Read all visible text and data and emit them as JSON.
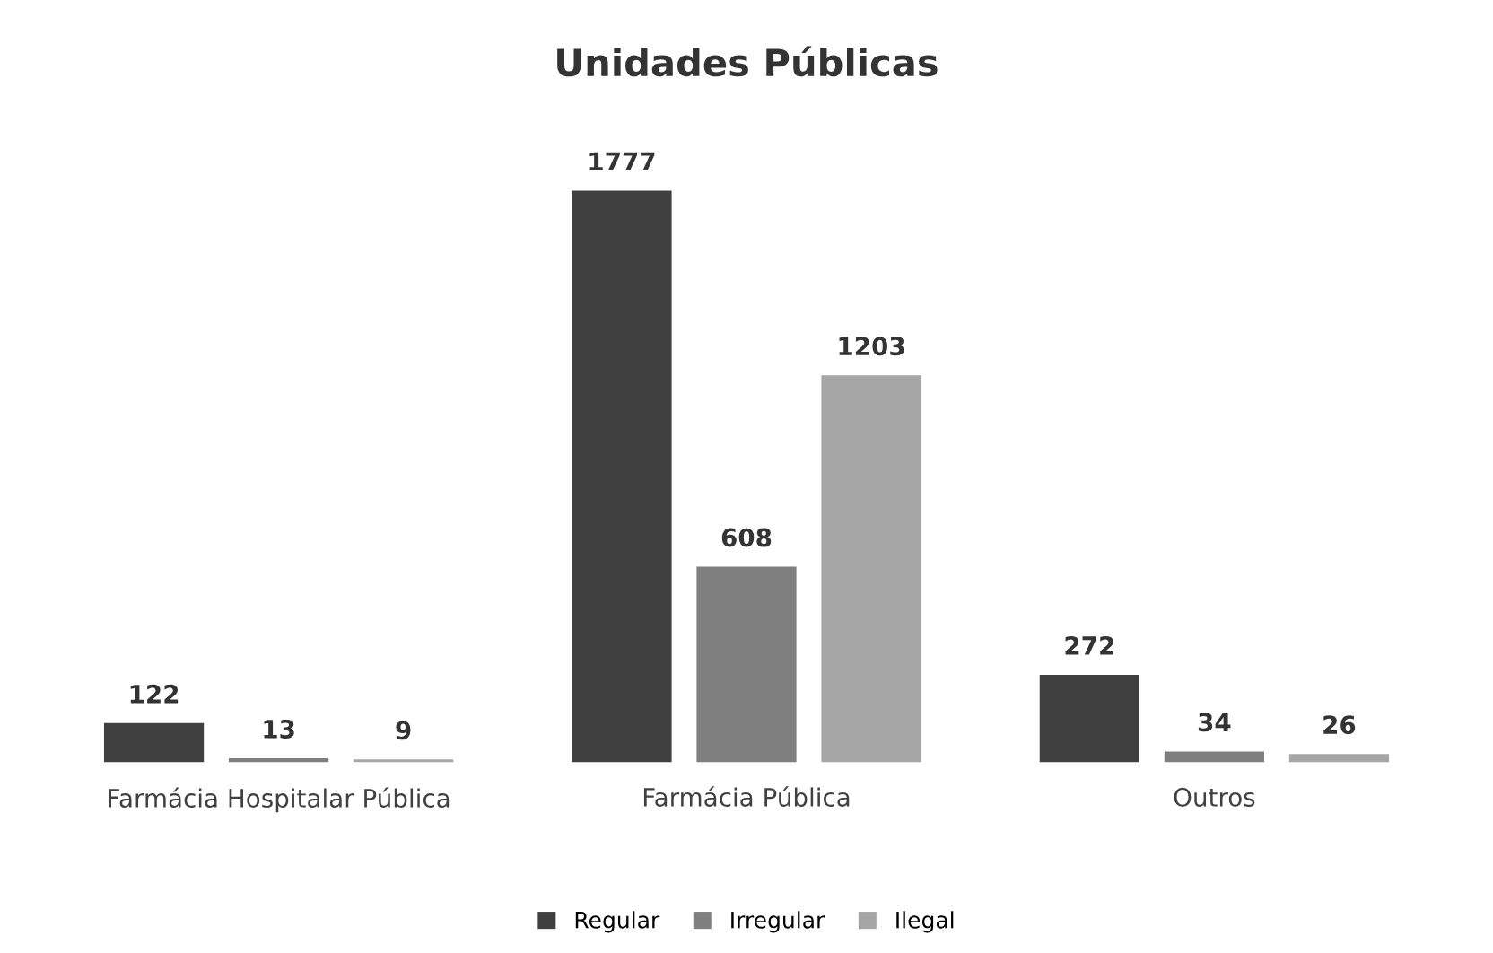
{
  "chart_data": {
    "type": "bar",
    "title": "Unidades Públicas",
    "categories": [
      "Farmácia Hospitalar Pública",
      "Farmácia Pública",
      "Outros"
    ],
    "series": [
      {
        "name": "Regular",
        "color": "#404040",
        "values": [
          122,
          1777,
          272
        ]
      },
      {
        "name": "Irregular",
        "color": "#7f7f7f",
        "values": [
          13,
          608,
          34
        ]
      },
      {
        "name": "Ilegal",
        "color": "#a6a6a6",
        "values": [
          9,
          1203,
          26
        ]
      }
    ],
    "data_labels": true,
    "legend": "bottom",
    "grid": false
  }
}
